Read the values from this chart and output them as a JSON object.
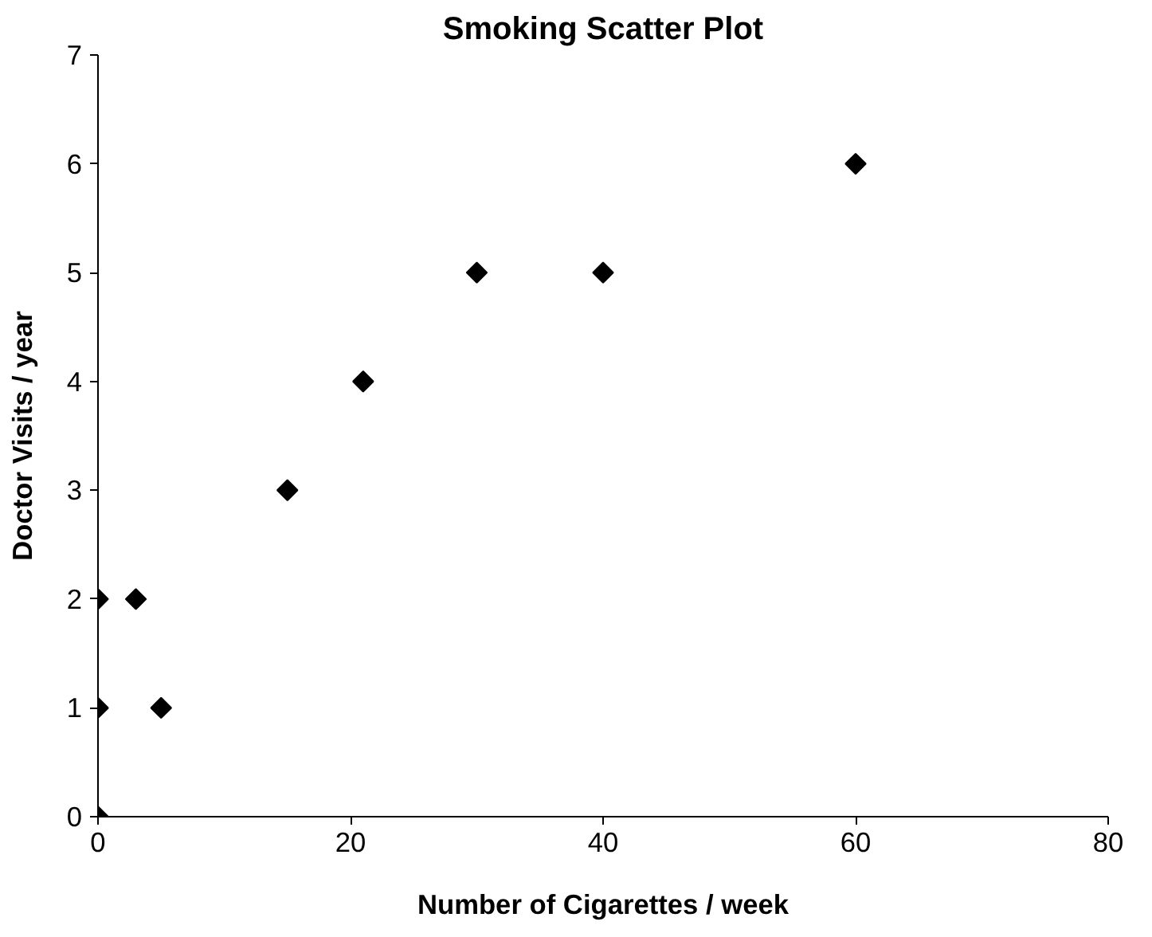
{
  "chart_data": {
    "type": "scatter",
    "title": "Smoking Scatter Plot",
    "xlabel": "Number of Cigarettes / week",
    "ylabel": "Doctor Visits / year",
    "x": [
      0,
      0,
      0,
      3,
      5,
      15,
      21,
      30,
      40,
      60
    ],
    "series": [
      {
        "color": "#000000",
        "values": [
          0,
          1,
          2,
          2,
          1,
          3,
          4,
          5,
          5,
          6
        ]
      }
    ],
    "marker": "diamond",
    "xlim": [
      0,
      80
    ],
    "xticks": [
      0,
      20,
      40,
      60,
      80
    ],
    "ylim": [
      0,
      7
    ],
    "yticks": [
      0,
      1,
      2,
      3,
      4,
      5,
      6,
      7
    ]
  }
}
